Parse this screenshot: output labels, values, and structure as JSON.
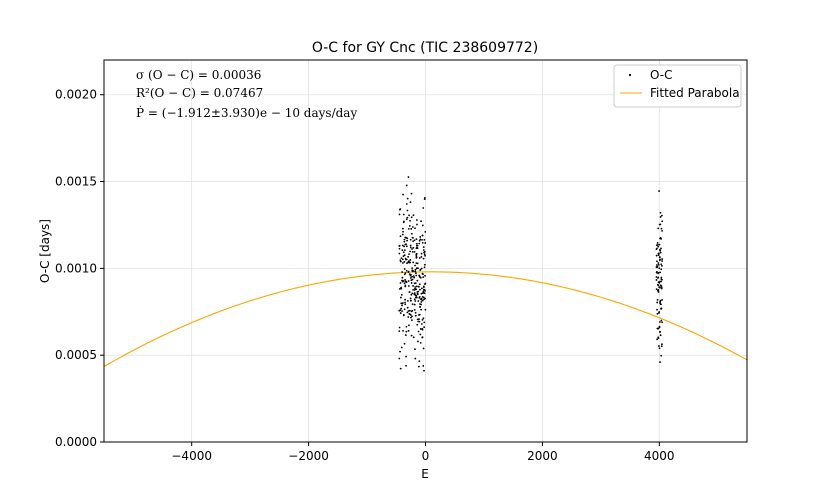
{
  "chart_data": {
    "type": "scatter",
    "title": "O-C for GY Cnc (TIC 238609772)",
    "xlabel": "E",
    "ylabel": "O-C [days]",
    "xlim": [
      -5500,
      5500
    ],
    "ylim": [
      0.0,
      0.0022
    ],
    "x_ticks": [
      -4000,
      -2000,
      0,
      2000,
      4000
    ],
    "x_tick_labels": [
      "−4000",
      "−2000",
      "0",
      "2000",
      "4000"
    ],
    "y_ticks": [
      0.0,
      0.0005,
      0.001,
      0.0015,
      0.002
    ],
    "y_tick_labels": [
      "0.0000",
      "0.0005",
      "0.0010",
      "0.0015",
      "0.0020"
    ],
    "grid": true,
    "legend_position": "top-right",
    "annotations": [
      "σ (O − C) = 0.00036",
      "R²(O − C) = 0.07467",
      "Ṗ = (−1.912±3.930)e − 10 days/day"
    ],
    "series": [
      {
        "name": "O-C",
        "kind": "scatter",
        "color": "#000000",
        "clusters": [
          {
            "x_range": [
              -450,
              0
            ],
            "y_range": [
              0.00022,
              0.00168
            ],
            "count": 330
          },
          {
            "x_range": [
              3950,
              4050
            ],
            "y_range": [
              0.00025,
              0.00163
            ],
            "count": 110
          }
        ]
      },
      {
        "name": "Fitted Parabola",
        "kind": "line",
        "color": "#ffa500",
        "x_range": [
          -5500,
          5500
        ],
        "vertex_x": 100,
        "vertex_y": 0.00098,
        "curvature": -1.74e-11
      }
    ]
  }
}
